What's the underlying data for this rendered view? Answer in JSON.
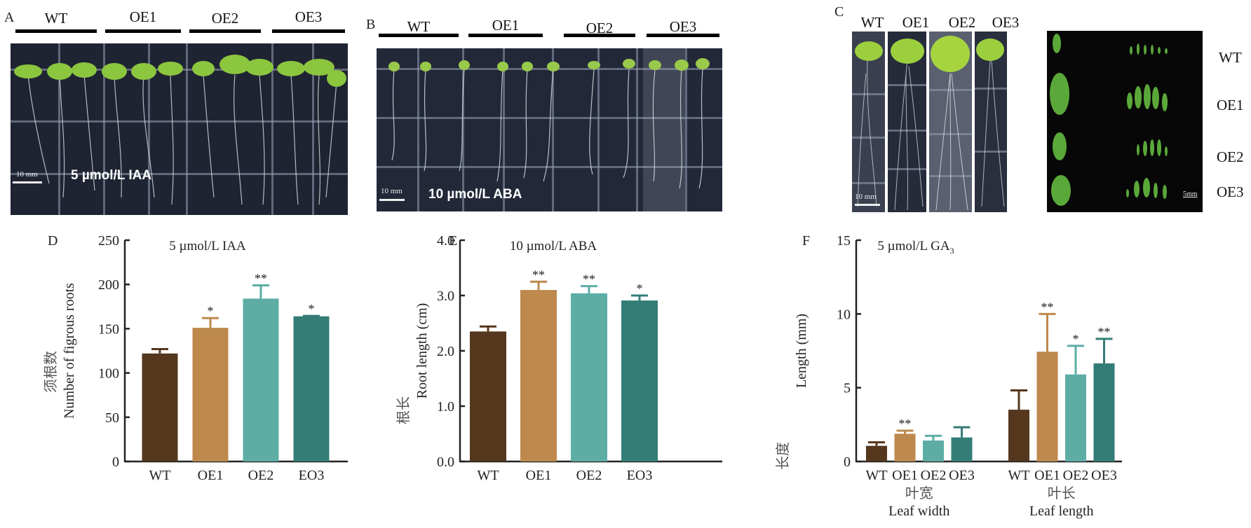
{
  "panels": {
    "A": {
      "label": "A",
      "groups": [
        "WT",
        "OE1",
        "OE2",
        "OE3"
      ],
      "scale_bar": "10 mm",
      "treatment": "5 µmol/L IAA"
    },
    "B": {
      "label": "B",
      "groups": [
        "WT",
        "OE1",
        "OE2",
        "OE3"
      ],
      "scale_bar": "10 mm",
      "treatment": "10 µmol/L ABA"
    },
    "C": {
      "label": "C",
      "groups": [
        "WT",
        "OE1",
        "OE2",
        "OE3"
      ],
      "scale_bar": "10 mm",
      "leaf_scale_bar": "5mm",
      "row_labels": [
        "WT",
        "OE1",
        "OE2",
        "OE3"
      ]
    }
  },
  "colors": {
    "WT": "#54371d",
    "OE1": "#bd894d",
    "OE2": "#5dada5",
    "OE3": "#347d76"
  },
  "chart_data": [
    {
      "panel": "D",
      "type": "bar",
      "title": "5 µmol/L IAA",
      "xlabel": "",
      "ylabel": "Number of figrous roots",
      "ylabel_cn": "须根数",
      "ylim": [
        0,
        250
      ],
      "yticks": [
        "0",
        "50",
        "100",
        "150",
        "200",
        "250"
      ],
      "ytick_values": [
        0,
        50,
        100,
        150,
        200,
        250
      ],
      "categories": [
        "WT",
        "OE1",
        "OE2",
        "EO3"
      ],
      "values": [
        122,
        151,
        184,
        164
      ],
      "error": [
        5,
        11,
        15,
        0.5
      ],
      "significance": [
        "",
        "*",
        "**",
        "*"
      ],
      "color_keys": [
        "WT",
        "OE1",
        "OE2",
        "OE3"
      ],
      "grid": false
    },
    {
      "panel": "E",
      "type": "bar",
      "title": "10 µmol/L ABA",
      "xlabel": "",
      "ylabel": "Root length (cm)",
      "ylabel_cn": "根长",
      "ylim": [
        0,
        4.0
      ],
      "yticks": [
        "0.0",
        "1.0",
        "2.0",
        "3.0",
        "4.0"
      ],
      "ytick_values": [
        0,
        1,
        2,
        3,
        4
      ],
      "categories": [
        "WT",
        "OE1",
        "OE2",
        "EO3"
      ],
      "values": [
        2.35,
        3.1,
        3.04,
        2.91
      ],
      "error": [
        0.09,
        0.15,
        0.13,
        0.09
      ],
      "significance": [
        "",
        "**",
        "**",
        "*"
      ],
      "color_keys": [
        "WT",
        "OE1",
        "OE2",
        "OE3"
      ],
      "grid": false
    },
    {
      "panel": "F",
      "type": "bar",
      "title": "5 µmol/L GA",
      "title_sub": "3",
      "xlabel": "",
      "ylabel": "Length (mm)",
      "ylabel_cn": "长度",
      "ylim": [
        0,
        15
      ],
      "yticks": [
        "0",
        "5",
        "10",
        "15"
      ],
      "ytick_values": [
        0,
        5,
        10,
        15
      ],
      "groups": [
        {
          "name": "Leaf width",
          "name_cn": "叶宽",
          "categories": [
            "WT",
            "OE1",
            "OE2",
            "OE3"
          ],
          "values": [
            1.06,
            1.88,
            1.42,
            1.63
          ],
          "error": [
            0.24,
            0.21,
            0.32,
            0.69
          ],
          "significance": [
            "",
            "**",
            "",
            ""
          ]
        },
        {
          "name": "Leaf length",
          "name_cn": "叶长",
          "categories": [
            "WT",
            "OE1",
            "OE2",
            "OE3"
          ],
          "values": [
            3.51,
            7.44,
            5.9,
            6.65
          ],
          "error": [
            1.31,
            2.56,
            1.94,
            1.66
          ],
          "significance": [
            "",
            "**",
            "*",
            "**"
          ]
        }
      ],
      "color_keys": [
        "WT",
        "OE1",
        "OE2",
        "OE3"
      ],
      "grid": false
    }
  ]
}
